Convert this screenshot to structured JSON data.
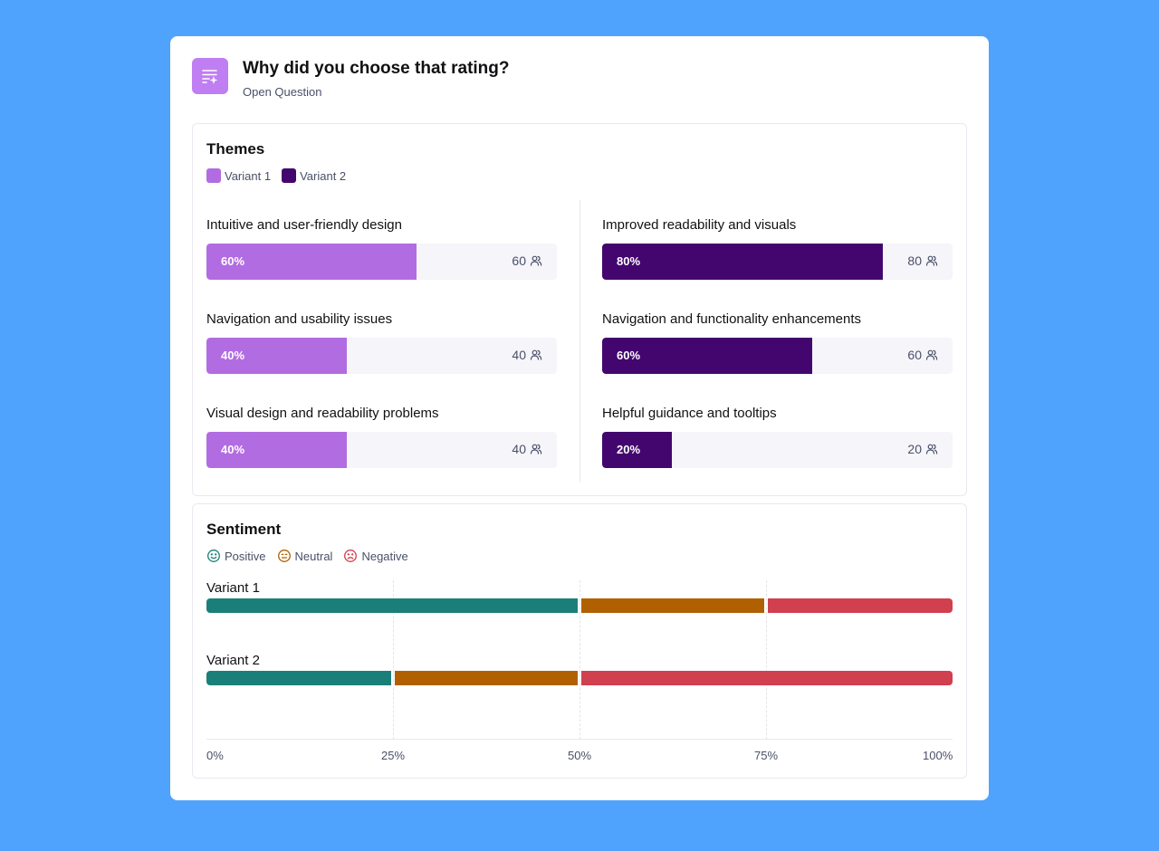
{
  "header": {
    "title": "Why did you choose that rating?",
    "subtitle": "Open Question",
    "icon": "ai-text-icon",
    "icon_color": "#c07ef3"
  },
  "themes": {
    "title": "Themes",
    "legend": [
      {
        "label": "Variant 1",
        "color": "#b26ce1"
      },
      {
        "label": "Variant 2",
        "color": "#43066f"
      }
    ],
    "variant1": [
      {
        "label": "Intuitive and user-friendly design",
        "percent": 60,
        "percent_label": "60%",
        "count": "60"
      },
      {
        "label": "Navigation and usability issues",
        "percent": 40,
        "percent_label": "40%",
        "count": "40"
      },
      {
        "label": "Visual design and readability problems",
        "percent": 40,
        "percent_label": "40%",
        "count": "40"
      }
    ],
    "variant2": [
      {
        "label": "Improved readability and visuals",
        "percent": 80,
        "percent_label": "80%",
        "count": "80"
      },
      {
        "label": "Navigation and functionality enhancements",
        "percent": 60,
        "percent_label": "60%",
        "count": "60"
      },
      {
        "label": "Helpful guidance and tooltips",
        "percent": 20,
        "percent_label": "20%",
        "count": "20"
      }
    ]
  },
  "sentiment": {
    "title": "Sentiment",
    "legend": [
      {
        "label": "Positive",
        "icon": "smile-icon",
        "color": "#1b7f79"
      },
      {
        "label": "Neutral",
        "icon": "neutral-face-icon",
        "color": "#b06000"
      },
      {
        "label": "Negative",
        "icon": "frown-icon",
        "color": "#d0404e"
      }
    ]
  },
  "chart_data": {
    "type": "bar",
    "orientation": "horizontal-stacked",
    "categories": [
      "Variant 1",
      "Variant 2"
    ],
    "series": [
      {
        "name": "Positive",
        "color": "#1b7f79",
        "values": [
          50,
          25
        ]
      },
      {
        "name": "Neutral",
        "color": "#b06000",
        "values": [
          25,
          25
        ]
      },
      {
        "name": "Negative",
        "color": "#d0404e",
        "values": [
          25,
          50
        ]
      }
    ],
    "x_ticks": [
      "0%",
      "25%",
      "50%",
      "75%",
      "100%"
    ],
    "xlim": [
      0,
      100
    ],
    "grid": true
  }
}
